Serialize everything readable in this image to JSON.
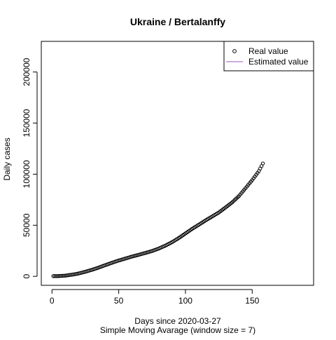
{
  "chart_data": {
    "type": "scatter",
    "title": "Ukraine / Bertalanffy",
    "xlabel": "Days since 2020-03-27",
    "subtitle": "Simple Moving Avarage (window size = 7)",
    "ylabel": "Daily cases",
    "xlim": [
      -8,
      196
    ],
    "ylim": [
      -8800,
      230000
    ],
    "xticks": [
      0,
      50,
      100,
      150
    ],
    "yticks": [
      0,
      50000,
      100000,
      150000,
      200000
    ],
    "legend_position": "top-right",
    "legend": [
      {
        "label": "Real value",
        "marker": "open-circle",
        "color": "#000000"
      },
      {
        "label": "Estimated value",
        "marker": "line",
        "color": "#9b59b6"
      }
    ],
    "series": [
      {
        "name": "Real value",
        "marker": "open-circle",
        "color": "#000000",
        "anchors": [
          [
            1,
            200
          ],
          [
            5,
            300
          ],
          [
            10,
            700
          ],
          [
            15,
            1600
          ],
          [
            20,
            2800
          ],
          [
            25,
            4500
          ],
          [
            30,
            6400
          ],
          [
            35,
            8600
          ],
          [
            40,
            11000
          ],
          [
            45,
            13300
          ],
          [
            50,
            15500
          ],
          [
            55,
            17400
          ],
          [
            60,
            19400
          ],
          [
            65,
            21100
          ],
          [
            70,
            22900
          ],
          [
            75,
            24800
          ],
          [
            80,
            27200
          ],
          [
            85,
            30100
          ],
          [
            90,
            33500
          ],
          [
            95,
            37500
          ],
          [
            100,
            42000
          ],
          [
            105,
            46500
          ],
          [
            110,
            50500
          ],
          [
            115,
            54700
          ],
          [
            120,
            58600
          ],
          [
            125,
            62500
          ],
          [
            130,
            67400
          ],
          [
            135,
            72400
          ],
          [
            140,
            78500
          ],
          [
            145,
            86300
          ],
          [
            150,
            94200
          ],
          [
            155,
            103000
          ],
          [
            158,
            110500
          ]
        ]
      }
    ]
  }
}
